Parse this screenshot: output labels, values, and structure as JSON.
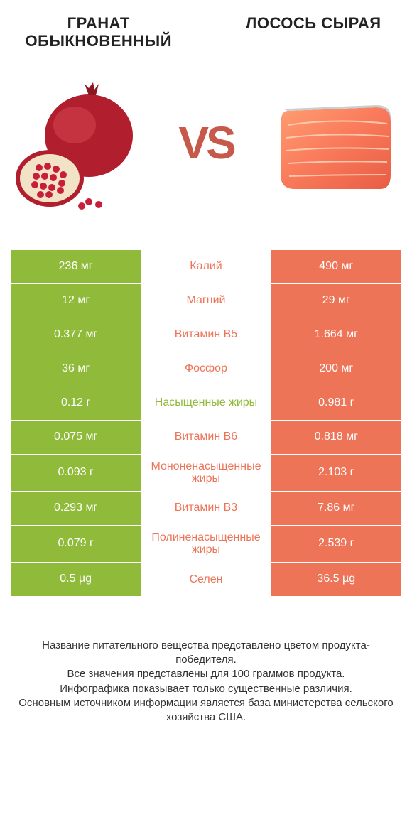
{
  "header": {
    "left_title": "ГРАНАТ ОБЫКНОВЕННЫЙ",
    "right_title": "ЛОСОСЬ СЫРАЯ",
    "vs_label": "VS"
  },
  "colors": {
    "left_bar": "#8fba3a",
    "right_bar": "#ee7458",
    "left_text": "#8fba3a",
    "right_text": "#ee7458",
    "vs_text": "#c6594a",
    "background": "#ffffff"
  },
  "table": {
    "rows": [
      {
        "left": "236 мг",
        "label": "Калий",
        "right": "490 мг",
        "winner": "right"
      },
      {
        "left": "12 мг",
        "label": "Магний",
        "right": "29 мг",
        "winner": "right"
      },
      {
        "left": "0.377 мг",
        "label": "Витамин B5",
        "right": "1.664 мг",
        "winner": "right"
      },
      {
        "left": "36 мг",
        "label": "Фосфор",
        "right": "200 мг",
        "winner": "right"
      },
      {
        "left": "0.12 г",
        "label": "Насыщенные жиры",
        "right": "0.981 г",
        "winner": "left"
      },
      {
        "left": "0.075 мг",
        "label": "Витамин B6",
        "right": "0.818 мг",
        "winner": "right"
      },
      {
        "left": "0.093 г",
        "label": "Мононенасыщенные жиры",
        "right": "2.103 г",
        "winner": "right"
      },
      {
        "left": "0.293 мг",
        "label": "Витамин B3",
        "right": "7.86 мг",
        "winner": "right"
      },
      {
        "left": "0.079 г",
        "label": "Полиненасыщенные жиры",
        "right": "2.539 г",
        "winner": "right"
      },
      {
        "left": "0.5 µg",
        "label": "Селен",
        "right": "36.5 µg",
        "winner": "right"
      }
    ]
  },
  "footer": {
    "line1": "Название питательного вещества представлено цветом продукта-победителя.",
    "line2": "Все значения представлены для 100 граммов продукта.",
    "line3": "Инфографика показывает только существенные различия.",
    "line4": "Основным источником информации является база министерства сельского хозяйства США."
  }
}
